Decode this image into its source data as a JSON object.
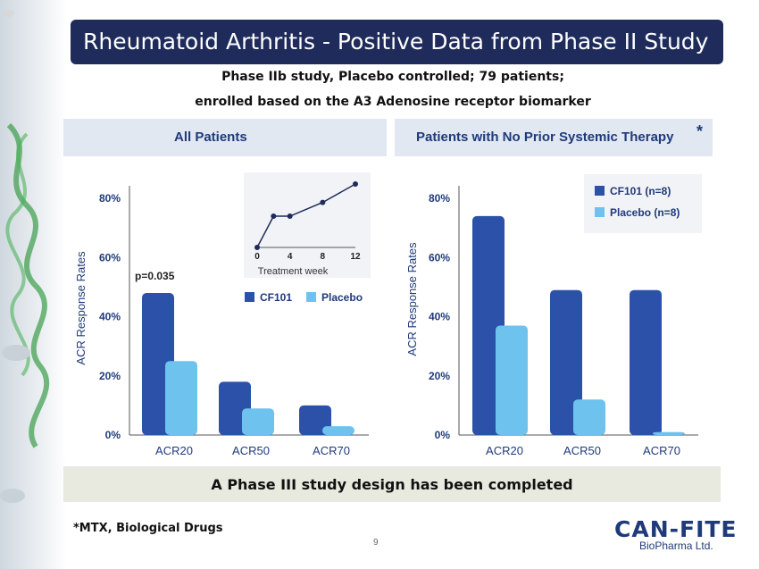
{
  "slide": {
    "title": "Rheumatoid Arthritis - Positive Data from Phase II Study",
    "subtitle_line1": "Phase IIb study, Placebo controlled; 79 patients;",
    "subtitle_line2": "enrolled based on the A3 Adenosine receptor biomarker",
    "footer_banner": "A Phase III study design has been completed",
    "footnote": "*MTX, Biological Drugs",
    "page_number": "9",
    "logo_main": "CAN-FITE",
    "logo_sub": "BioPharma Ltd."
  },
  "colors": {
    "cf101": "#2b52a8",
    "placebo": "#6ec3ee",
    "title_bar": "#1f2b5a",
    "panel_header": "#e1e8f2",
    "header_text": "#1f3a7a"
  },
  "chart_data": [
    {
      "type": "bar",
      "title": "All Patients",
      "ylabel": "ACR Response Rates",
      "categories": [
        "ACR20",
        "ACR50",
        "ACR70"
      ],
      "yticks": [
        "0%",
        "20%",
        "40%",
        "60%",
        "80%"
      ],
      "ylim": [
        0,
        80
      ],
      "series": [
        {
          "name": "CF101",
          "values": [
            48,
            18,
            10
          ]
        },
        {
          "name": "Placebo",
          "values": [
            25,
            9,
            3
          ]
        }
      ],
      "annotation": "p=0.035",
      "legend_position": "right",
      "inset": {
        "type": "line",
        "xlabel": "Treatment week",
        "x": [
          0,
          2,
          4,
          8,
          12
        ],
        "y": [
          0,
          34,
          34,
          49,
          69
        ],
        "xticks": [
          "0",
          "4",
          "8",
          "12"
        ]
      }
    },
    {
      "type": "bar",
      "title": "Patients with No Prior Systemic Therapy",
      "title_mark": "*",
      "ylabel": "ACR Response Rates",
      "categories": [
        "ACR20",
        "ACR50",
        "ACR70"
      ],
      "yticks": [
        "0%",
        "20%",
        "40%",
        "60%",
        "80%"
      ],
      "ylim": [
        0,
        80
      ],
      "series": [
        {
          "name": "CF101 (n=8)",
          "values": [
            74,
            49,
            49
          ]
        },
        {
          "name": "Placebo (n=8)",
          "values": [
            37,
            12,
            1
          ]
        }
      ],
      "legend_position": "top-right"
    }
  ]
}
